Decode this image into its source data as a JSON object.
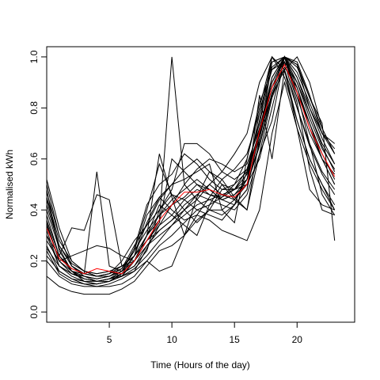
{
  "chart_data": {
    "type": "line",
    "title": "",
    "xlabel": "Time (Hours of the day)",
    "ylabel": "Normalised kWh",
    "xlim": [
      0,
      24.6
    ],
    "ylim": [
      -0.04,
      1.04
    ],
    "x_ticks": [
      5,
      10,
      15,
      20
    ],
    "y_ticks": [
      0.0,
      0.2,
      0.4,
      0.6,
      0.8,
      1.0
    ],
    "y_tick_labels": [
      "0.0",
      "0.2",
      "0.4",
      "0.6",
      "0.8",
      "1.0"
    ],
    "grid": false,
    "legend": "none",
    "x": [
      0,
      1,
      2,
      3,
      4,
      5,
      6,
      7,
      8,
      9,
      10,
      11,
      12,
      13,
      14,
      15,
      16,
      17,
      18,
      19,
      20,
      21,
      22,
      23
    ],
    "series_color": "#000000",
    "mean_color": "#ff0000",
    "series": [
      {
        "values": [
          0.52,
          0.33,
          0.2,
          0.16,
          0.15,
          0.16,
          0.14,
          0.2,
          0.3,
          0.38,
          0.42,
          0.45,
          0.5,
          0.48,
          0.44,
          0.42,
          0.55,
          0.7,
          0.88,
          1.0,
          0.97,
          0.8,
          0.68,
          0.58
        ]
      },
      {
        "values": [
          0.47,
          0.3,
          0.18,
          0.14,
          0.12,
          0.13,
          0.16,
          0.22,
          0.35,
          0.45,
          0.5,
          0.56,
          0.6,
          0.55,
          0.5,
          0.48,
          0.52,
          0.78,
          0.95,
          0.98,
          0.9,
          0.78,
          0.65,
          0.55
        ]
      },
      {
        "values": [
          0.4,
          0.25,
          0.16,
          0.12,
          0.11,
          0.12,
          0.14,
          0.2,
          0.3,
          0.36,
          1.0,
          0.5,
          0.44,
          0.4,
          0.38,
          0.42,
          0.48,
          0.7,
          0.85,
          0.95,
          1.0,
          0.9,
          0.72,
          0.62
        ]
      },
      {
        "values": [
          0.35,
          0.2,
          0.16,
          0.15,
          0.55,
          0.18,
          0.16,
          0.24,
          0.4,
          0.58,
          0.46,
          0.4,
          0.35,
          0.4,
          0.48,
          0.5,
          0.55,
          0.75,
          1.0,
          0.92,
          0.75,
          0.6,
          0.5,
          0.4
        ]
      },
      {
        "values": [
          0.3,
          0.22,
          0.33,
          0.32,
          0.46,
          0.44,
          0.18,
          0.2,
          0.28,
          0.35,
          0.6,
          0.55,
          0.5,
          0.46,
          0.45,
          0.5,
          0.6,
          0.82,
          0.95,
          1.0,
          0.98,
          0.85,
          0.7,
          0.64
        ]
      },
      {
        "values": [
          0.25,
          0.18,
          0.15,
          0.13,
          0.12,
          0.12,
          0.15,
          0.18,
          0.26,
          0.32,
          0.36,
          0.4,
          0.44,
          0.5,
          0.46,
          0.44,
          0.5,
          0.6,
          0.8,
          1.0,
          0.84,
          0.7,
          0.6,
          0.5
        ]
      },
      {
        "values": [
          0.22,
          0.16,
          0.13,
          0.12,
          0.12,
          0.13,
          0.14,
          0.16,
          0.2,
          0.16,
          0.18,
          0.3,
          0.45,
          0.55,
          0.52,
          0.45,
          0.4,
          0.62,
          0.75,
          1.0,
          0.86,
          0.74,
          0.62,
          0.52
        ]
      },
      {
        "values": [
          0.2,
          0.14,
          0.11,
          0.1,
          0.1,
          0.1,
          0.11,
          0.14,
          0.2,
          0.26,
          0.3,
          0.35,
          0.4,
          0.42,
          0.45,
          0.48,
          0.5,
          0.65,
          0.85,
          0.98,
          0.8,
          0.66,
          0.55,
          0.48
        ]
      },
      {
        "values": [
          0.14,
          0.1,
          0.08,
          0.07,
          0.07,
          0.07,
          0.09,
          0.12,
          0.18,
          0.24,
          0.26,
          0.3,
          0.38,
          0.36,
          0.32,
          0.3,
          0.28,
          0.4,
          0.7,
          0.9,
          0.72,
          0.58,
          0.48,
          0.4
        ]
      },
      {
        "values": [
          0.28,
          0.2,
          0.22,
          0.24,
          0.26,
          0.25,
          0.22,
          0.2,
          0.3,
          0.62,
          0.45,
          0.3,
          0.36,
          0.4,
          0.4,
          0.44,
          0.52,
          0.72,
          0.9,
          1.0,
          0.97,
          0.84,
          0.72,
          0.62
        ]
      },
      {
        "values": [
          0.32,
          0.18,
          0.15,
          0.14,
          0.13,
          0.14,
          0.16,
          0.25,
          0.42,
          0.5,
          0.54,
          0.62,
          0.58,
          0.52,
          0.48,
          0.48,
          0.56,
          0.74,
          0.96,
          1.0,
          0.92,
          0.78,
          0.66,
          0.58
        ]
      },
      {
        "values": [
          0.5,
          0.3,
          0.18,
          0.15,
          0.14,
          0.15,
          0.2,
          0.28,
          0.34,
          0.4,
          0.48,
          0.66,
          0.66,
          0.62,
          0.55,
          0.52,
          0.56,
          0.7,
          0.9,
          1.0,
          0.9,
          0.76,
          0.64,
          0.56
        ]
      },
      {
        "values": [
          0.45,
          0.28,
          0.2,
          0.16,
          0.14,
          0.15,
          0.18,
          0.22,
          0.3,
          0.42,
          0.38,
          0.34,
          0.3,
          0.42,
          0.5,
          0.44,
          0.4,
          0.68,
          0.98,
          1.0,
          0.88,
          0.72,
          0.6,
          0.5
        ]
      },
      {
        "values": [
          0.38,
          0.22,
          0.16,
          0.14,
          0.13,
          0.14,
          0.17,
          0.26,
          0.34,
          0.44,
          0.5,
          0.52,
          0.55,
          0.58,
          0.4,
          0.35,
          0.6,
          0.8,
          1.0,
          0.95,
          0.8,
          0.65,
          0.54,
          0.46
        ]
      },
      {
        "values": [
          0.3,
          0.18,
          0.14,
          0.12,
          0.11,
          0.12,
          0.15,
          0.18,
          0.24,
          0.4,
          0.46,
          0.44,
          0.4,
          0.38,
          0.36,
          0.42,
          0.48,
          0.85,
          0.6,
          0.95,
          0.75,
          0.6,
          0.5,
          0.42
        ]
      },
      {
        "values": [
          0.34,
          0.2,
          0.15,
          0.13,
          0.12,
          0.13,
          0.15,
          0.22,
          0.38,
          0.45,
          0.4,
          0.36,
          0.38,
          0.45,
          0.52,
          0.56,
          0.62,
          0.78,
          0.98,
          1.0,
          0.86,
          0.66,
          0.46,
          0.38
        ]
      },
      {
        "values": [
          0.44,
          0.26,
          0.18,
          0.15,
          0.14,
          0.14,
          0.16,
          0.2,
          0.28,
          0.32,
          0.36,
          0.42,
          0.46,
          0.5,
          0.55,
          0.62,
          0.7,
          0.9,
          1.0,
          0.95,
          0.72,
          0.48,
          0.42,
          0.4
        ]
      },
      {
        "values": [
          0.26,
          0.16,
          0.13,
          0.11,
          0.11,
          0.12,
          0.14,
          0.17,
          0.22,
          0.28,
          0.34,
          0.38,
          0.42,
          0.44,
          0.46,
          0.48,
          0.54,
          0.7,
          0.92,
          1.0,
          0.82,
          0.56,
          0.4,
          0.38
        ]
      },
      {
        "values": [
          0.36,
          0.22,
          0.17,
          0.15,
          0.14,
          0.15,
          0.17,
          0.24,
          0.32,
          0.38,
          0.44,
          0.48,
          0.52,
          0.48,
          0.44,
          0.46,
          0.52,
          0.68,
          0.88,
          1.0,
          0.94,
          0.82,
          0.7,
          0.62
        ]
      },
      {
        "values": [
          0.48,
          0.24,
          0.16,
          0.13,
          0.12,
          0.13,
          0.15,
          0.2,
          0.26,
          0.3,
          0.34,
          0.4,
          0.46,
          0.44,
          0.42,
          0.4,
          0.46,
          0.62,
          0.84,
          0.96,
          0.88,
          0.74,
          0.6,
          0.54
        ]
      },
      {
        "values": [
          0.24,
          0.15,
          0.12,
          0.11,
          0.1,
          0.11,
          0.13,
          0.16,
          0.25,
          0.34,
          0.42,
          0.5,
          0.56,
          0.6,
          0.58,
          0.55,
          0.58,
          0.72,
          0.92,
          1.0,
          0.96,
          0.84,
          0.74,
          0.28
        ]
      },
      {
        "values": [
          0.42,
          0.26,
          0.19,
          0.16,
          0.15,
          0.16,
          0.18,
          0.22,
          0.28,
          0.34,
          0.38,
          0.44,
          0.48,
          0.46,
          0.44,
          0.46,
          0.5,
          0.66,
          0.86,
          1.0,
          0.92,
          0.8,
          0.7,
          0.66
        ]
      }
    ],
    "mean": {
      "values": [
        0.33,
        0.21,
        0.17,
        0.15,
        0.17,
        0.16,
        0.15,
        0.2,
        0.28,
        0.36,
        0.42,
        0.47,
        0.47,
        0.48,
        0.46,
        0.45,
        0.5,
        0.71,
        0.88,
        0.97,
        0.86,
        0.72,
        0.62,
        0.53
      ]
    }
  }
}
